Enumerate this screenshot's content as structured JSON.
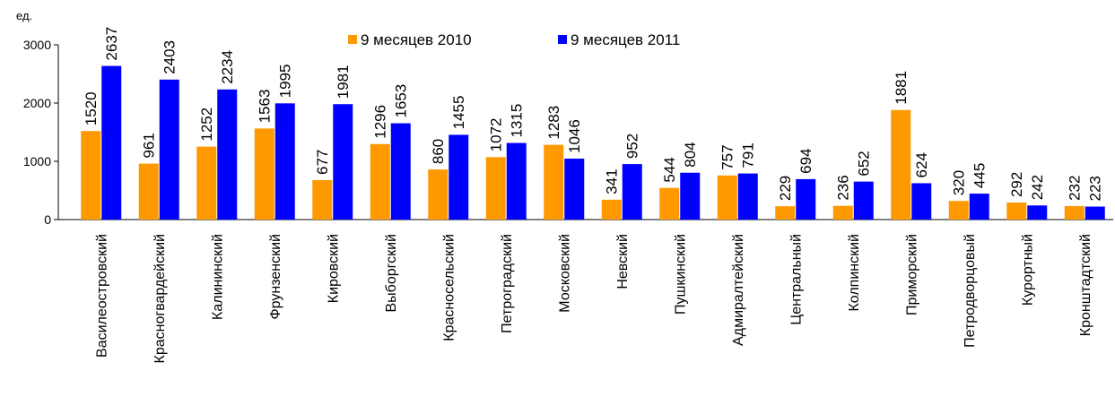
{
  "chart_data": {
    "type": "bar",
    "y_label": "ед.",
    "categories": [
      "Василеостровский",
      "Красногвардейский",
      "Калининский",
      "Фрунзенский",
      "Кировский",
      "Выборгский",
      "Красносельский",
      "Петроградский",
      "Московский",
      "Невский",
      "Пушкинский",
      "Адмиралтейский",
      "Центральный",
      "Колпинский",
      "Приморский",
      "Петродворцовый",
      "Курортный",
      "Кронштадтский"
    ],
    "series": [
      {
        "name": "9 месяцев 2010",
        "color": "#ff9900",
        "values": [
          1520,
          961,
          1252,
          1563,
          677,
          1296,
          860,
          1072,
          1283,
          341,
          544,
          757,
          229,
          236,
          1881,
          320,
          292,
          232
        ]
      },
      {
        "name": "9 месяцев 2011",
        "color": "#0000ff",
        "values": [
          2637,
          2403,
          2234,
          1995,
          1981,
          1653,
          1455,
          1315,
          1046,
          952,
          804,
          791,
          694,
          652,
          624,
          445,
          242,
          223
        ]
      }
    ],
    "ylim": [
      0,
      3000
    ],
    "yticks": [
      0,
      1000,
      2000,
      3000
    ],
    "grid": false,
    "legend": "top"
  }
}
